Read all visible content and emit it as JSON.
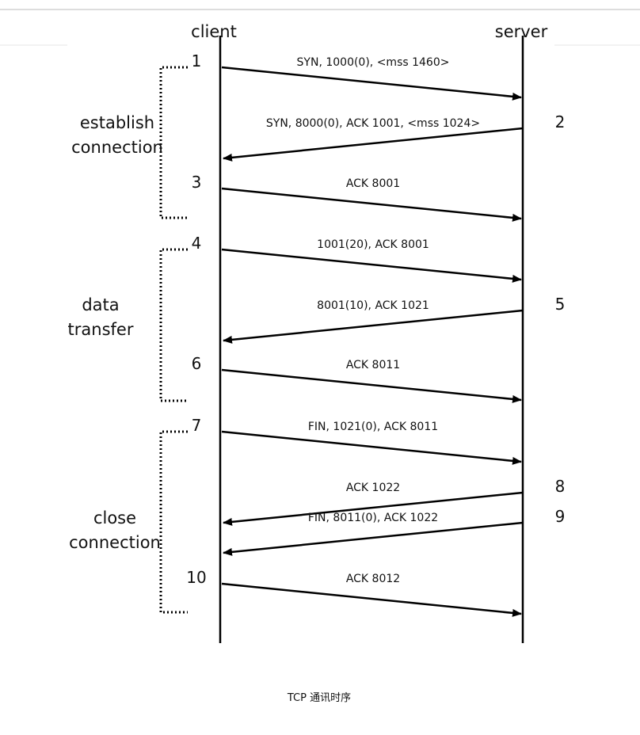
{
  "lifelines": {
    "client": "client",
    "server": "server"
  },
  "messages": [
    {
      "step": "1",
      "label": "SYN, 1000(0), <mss 1460>"
    },
    {
      "step": "2",
      "label": "SYN, 8000(0), ACK 1001, <mss 1024>"
    },
    {
      "step": "3",
      "label": "ACK 8001"
    },
    {
      "step": "4",
      "label": "1001(20), ACK 8001"
    },
    {
      "step": "5",
      "label": "8001(10), ACK 1021"
    },
    {
      "step": "6",
      "label": "ACK 8011"
    },
    {
      "step": "7",
      "label": "FIN, 1021(0), ACK 8011"
    },
    {
      "step": "8",
      "label": "ACK 1022"
    },
    {
      "step": "9",
      "label": "FIN, 8011(0), ACK 1022"
    },
    {
      "step": "10",
      "label": "ACK 8012"
    }
  ],
  "phases": [
    {
      "lines": [
        "establish",
        "connection"
      ]
    },
    {
      "lines": [
        "data",
        "transfer"
      ]
    },
    {
      "lines": [
        "close",
        "connection"
      ]
    }
  ],
  "caption": "TCP 通讯时序"
}
